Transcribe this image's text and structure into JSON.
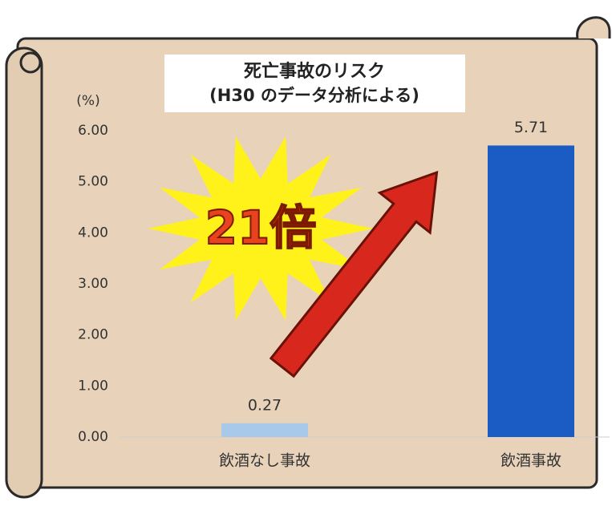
{
  "chart_data": {
    "type": "bar",
    "title": "死亡事故のリスク",
    "subtitle": "(H30 のデータ分析による)",
    "y_unit": "(%)",
    "annotation": "21倍",
    "categories": [
      "飲酒なし事故",
      "飲酒事故"
    ],
    "values": [
      0.27,
      5.71
    ],
    "colors": [
      "#a9c9ea",
      "#1a5cc4"
    ],
    "ylim": [
      0,
      6
    ],
    "yticks": [
      {
        "value": 0,
        "label": "0.00"
      },
      {
        "value": 1,
        "label": "1.00"
      },
      {
        "value": 2,
        "label": "2.00"
      },
      {
        "value": 3,
        "label": "3.00"
      },
      {
        "value": 4,
        "label": "4.00"
      },
      {
        "value": 5,
        "label": "5.00"
      },
      {
        "value": 6,
        "label": "6.00"
      }
    ],
    "grid": false
  }
}
